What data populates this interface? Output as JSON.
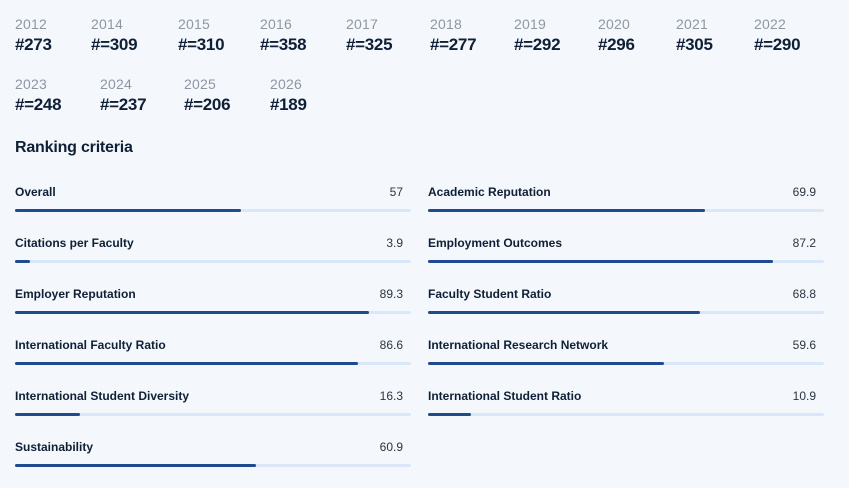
{
  "rankings": [
    [
      {
        "year": "2012",
        "rank": "#273"
      },
      {
        "year": "2014",
        "rank": "#=309"
      },
      {
        "year": "2015",
        "rank": "#=310"
      },
      {
        "year": "2016",
        "rank": "#=358"
      },
      {
        "year": "2017",
        "rank": "#=325"
      },
      {
        "year": "2018",
        "rank": "#=277"
      },
      {
        "year": "2019",
        "rank": "#=292"
      },
      {
        "year": "2020",
        "rank": "#296"
      },
      {
        "year": "2021",
        "rank": "#305"
      },
      {
        "year": "2022",
        "rank": "#=290"
      }
    ],
    [
      {
        "year": "2023",
        "rank": "#=248"
      },
      {
        "year": "2024",
        "rank": "#=237"
      },
      {
        "year": "2025",
        "rank": "#=206"
      },
      {
        "year": "2026",
        "rank": "#189"
      }
    ]
  ],
  "section_title": "Ranking criteria",
  "criteria": [
    {
      "name": "Overall",
      "score": "57",
      "value": 57
    },
    {
      "name": "Academic Reputation",
      "score": "69.9",
      "value": 69.9
    },
    {
      "name": "Citations per Faculty",
      "score": "3.9",
      "value": 3.9
    },
    {
      "name": "Employment Outcomes",
      "score": "87.2",
      "value": 87.2
    },
    {
      "name": "Employer Reputation",
      "score": "89.3",
      "value": 89.3
    },
    {
      "name": "Faculty Student Ratio",
      "score": "68.8",
      "value": 68.8
    },
    {
      "name": "International Faculty Ratio",
      "score": "86.6",
      "value": 86.6
    },
    {
      "name": "International Research Network",
      "score": "59.6",
      "value": 59.6
    },
    {
      "name": "International Student Diversity",
      "score": "16.3",
      "value": 16.3
    },
    {
      "name": "International Student Ratio",
      "score": "10.9",
      "value": 10.9
    },
    {
      "name": "Sustainability",
      "score": "60.9",
      "value": 60.9
    }
  ],
  "colors": {
    "bar_fill": "#1f4a8e",
    "bar_track": "#d9e7f8",
    "background": "#f4f8fd"
  }
}
